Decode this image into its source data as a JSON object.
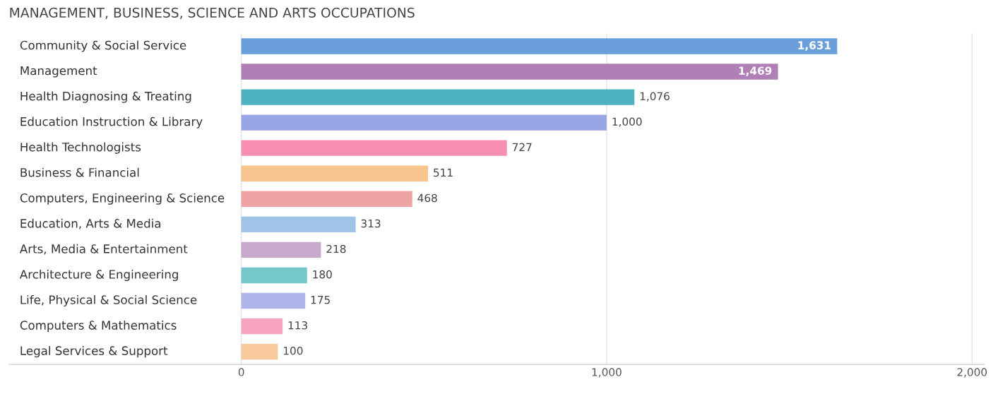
{
  "chart_data": {
    "type": "bar",
    "orientation": "horizontal",
    "title": "MANAGEMENT, BUSINESS, SCIENCE AND ARTS OCCUPATIONS",
    "categories": [
      "Community & Social Service",
      "Management",
      "Health Diagnosing & Treating",
      "Education Instruction & Library",
      "Health Technologists",
      "Business & Financial",
      "Computers, Engineering & Science",
      "Education, Arts & Media",
      "Arts, Media & Entertainment",
      "Architecture & Engineering",
      "Life, Physical & Social Science",
      "Computers & Mathematics",
      "Legal Services & Support"
    ],
    "values": [
      1631,
      1469,
      1076,
      1000,
      727,
      511,
      468,
      313,
      218,
      180,
      175,
      113,
      100
    ],
    "colors": [
      "#6a9fdc",
      "#b07fb6",
      "#4db3c0",
      "#98a6e6",
      "#f68fb0",
      "#f9c48e",
      "#eea4a2",
      "#9fc4e8",
      "#c8a8cc",
      "#74c8cc",
      "#adb5ea",
      "#f6a4c0",
      "#f8c99c"
    ],
    "xlim": [
      -636,
      2033
    ],
    "xticks": [
      {
        "value": 0,
        "label": "0"
      },
      {
        "value": 1000,
        "label": "1,000"
      },
      {
        "value": 2000,
        "label": "2,000"
      }
    ],
    "value_labels": [
      "1,631",
      "1,469",
      "1,076",
      "1,000",
      "727",
      "511",
      "468",
      "313",
      "218",
      "180",
      "175",
      "113",
      "100"
    ],
    "grid": "x"
  }
}
